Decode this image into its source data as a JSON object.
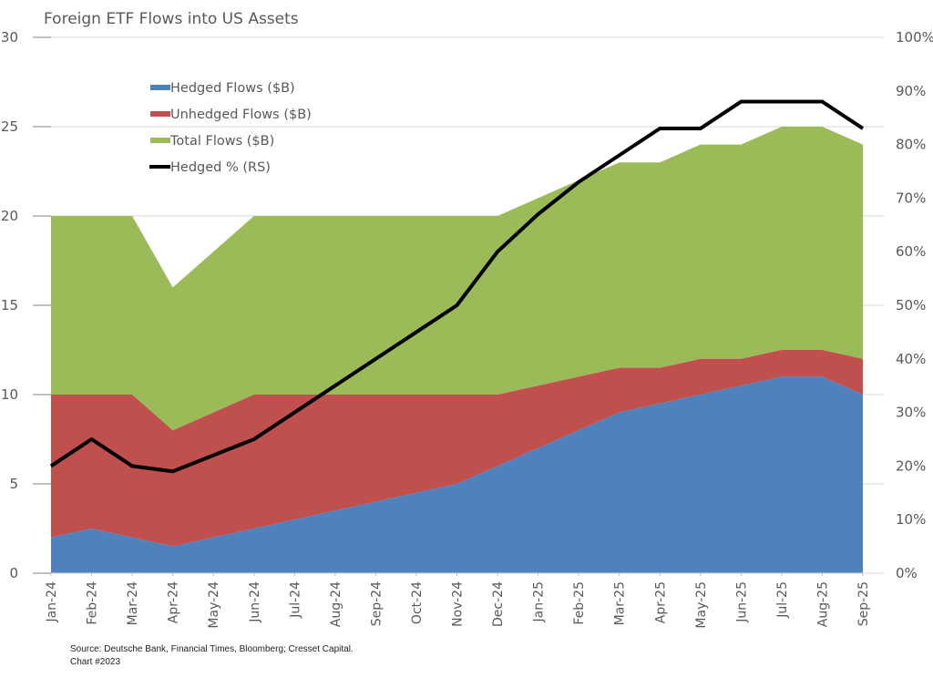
{
  "chart_data": {
    "type": "area",
    "title": "Foreign ETF Flows into US Assets",
    "xlabel": "",
    "ylabel": "",
    "y2label": "",
    "categories": [
      "Jan-24",
      "Feb-24",
      "Mar-24",
      "Apr-24",
      "May-24",
      "Jun-24",
      "Jul-24",
      "Aug-24",
      "Sep-24",
      "Oct-24",
      "Nov-24",
      "Dec-24",
      "Jan-25",
      "Feb-25",
      "Mar-25",
      "Apr-25",
      "May-25",
      "Jun-25",
      "Jul-25",
      "Aug-25",
      "Sep-25"
    ],
    "ylim": [
      0,
      30
    ],
    "yticks": [
      0,
      5,
      10,
      15,
      20,
      25,
      30
    ],
    "y2lim": [
      0,
      100
    ],
    "y2ticks": [
      "0%",
      "10%",
      "20%",
      "30%",
      "40%",
      "50%",
      "60%",
      "70%",
      "80%",
      "90%",
      "100%"
    ],
    "grid": true,
    "legend_position": "top-left",
    "series": [
      {
        "name": "Hedged Flows ($B)",
        "kind": "area",
        "axis": "left",
        "color": "#4f81bd",
        "values": [
          2,
          2.5,
          2,
          1.5,
          2,
          2.5,
          3,
          3.5,
          4,
          4.5,
          5,
          6,
          7,
          8,
          9,
          9.5,
          10,
          10.5,
          11,
          11,
          10
        ]
      },
      {
        "name": "Unhedged Flows ($B)",
        "kind": "area",
        "axis": "left",
        "color": "#c0504d",
        "values": [
          8,
          7.5,
          8,
          6.5,
          7,
          7.5,
          7,
          6.5,
          6,
          5.5,
          5,
          4,
          3.5,
          3,
          2.5,
          2,
          2,
          1.5,
          1.5,
          1.5,
          2
        ]
      },
      {
        "name": "Total Flows ($B)",
        "kind": "area",
        "axis": "left",
        "color": "#9bbb59",
        "values": [
          20,
          20,
          20,
          16,
          18,
          20,
          20,
          20,
          20,
          20,
          20,
          20,
          21,
          22,
          23,
          23,
          24,
          24,
          25,
          25,
          24
        ]
      },
      {
        "name": "Hedged % (RS)",
        "kind": "line",
        "axis": "right",
        "color": "#000000",
        "values": [
          20,
          25,
          20,
          19,
          22,
          25,
          30,
          35,
          40,
          45,
          50,
          60,
          67,
          73,
          78,
          83,
          83,
          88,
          88,
          88,
          83
        ]
      }
    ]
  },
  "source": {
    "line1": "Source: Deutsche Bank, Financial Times, Bloomberg; Cresset Capital.",
    "line2": "Chart #2023"
  }
}
